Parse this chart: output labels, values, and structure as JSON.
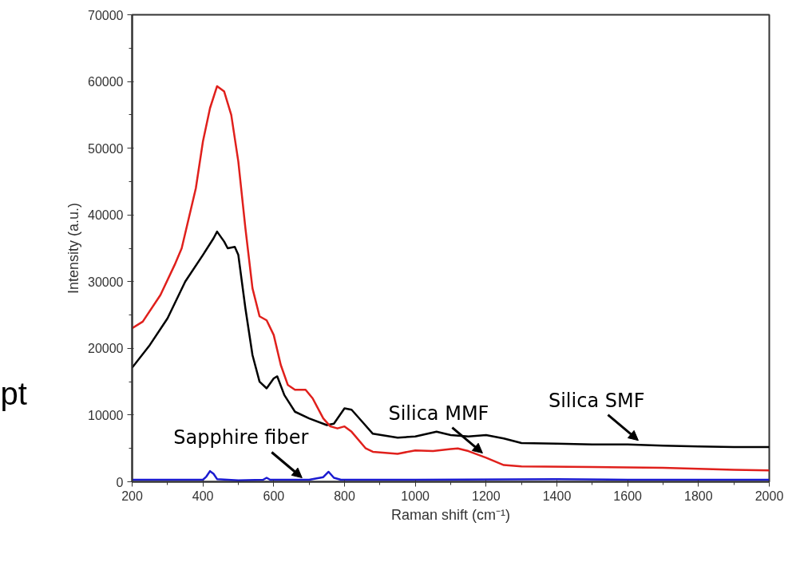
{
  "chart_data": {
    "type": "line",
    "xlabel": "Raman shift (cm⁻¹)",
    "ylabel": "Intensity (a.u.)",
    "xlim": [
      200,
      2000
    ],
    "xticks": [
      200,
      400,
      600,
      800,
      1000,
      1200,
      1400,
      1600,
      1800,
      2000
    ],
    "ylim": [
      0,
      70000
    ],
    "yticks": [
      0,
      10000,
      20000,
      30000,
      40000,
      50000,
      60000,
      70000
    ],
    "grid": false,
    "marker": "none",
    "line_style": "solid",
    "series": [
      {
        "color": "#000000",
        "x": [
          200,
          250,
          300,
          350,
          400,
          430,
          440,
          460,
          470,
          490,
          500,
          520,
          540,
          560,
          580,
          600,
          610,
          630,
          660,
          700,
          750,
          770,
          800,
          820,
          850,
          880,
          950,
          1000,
          1060,
          1100,
          1150,
          1200,
          1250,
          1300,
          1400,
          1500,
          1600,
          1700,
          1800,
          1900,
          2000
        ],
        "values": [
          17100,
          20500,
          24500,
          30000,
          34000,
          36500,
          37500,
          36000,
          35000,
          35200,
          34000,
          26000,
          19000,
          15000,
          14000,
          15500,
          15800,
          13000,
          10500,
          9500,
          8500,
          8700,
          11000,
          10800,
          9000,
          7200,
          6600,
          6800,
          7500,
          7000,
          6800,
          7000,
          6500,
          5800,
          5700,
          5600,
          5600,
          5400,
          5300,
          5200,
          5200
        ]
      },
      {
        "color": "#e0201c",
        "x": [
          200,
          230,
          280,
          320,
          340,
          380,
          400,
          420,
          440,
          460,
          480,
          500,
          520,
          540,
          560,
          580,
          600,
          620,
          640,
          660,
          690,
          710,
          740,
          760,
          780,
          800,
          820,
          860,
          880,
          950,
          1000,
          1050,
          1100,
          1120,
          1150,
          1200,
          1250,
          1300,
          1500,
          1700,
          1900,
          2000
        ],
        "values": [
          23000,
          24000,
          28000,
          32500,
          35000,
          44000,
          51000,
          56000,
          59300,
          58500,
          55000,
          48000,
          38000,
          29000,
          24800,
          24200,
          22000,
          17500,
          14500,
          13800,
          13800,
          12500,
          9500,
          8300,
          8000,
          8300,
          7500,
          5000,
          4500,
          4200,
          4700,
          4600,
          4900,
          5000,
          4600,
          3600,
          2500,
          2300,
          2200,
          2100,
          1800,
          1700
        ]
      },
      {
        "color": "#1a1ad0",
        "x": [
          200,
          400,
          410,
          420,
          430,
          440,
          500,
          570,
          580,
          590,
          700,
          740,
          755,
          770,
          790,
          1000,
          1400,
          1600,
          2000
        ],
        "values": [
          300,
          300,
          800,
          1600,
          1200,
          400,
          200,
          300,
          600,
          300,
          300,
          700,
          1500,
          600,
          300,
          300,
          400,
          300,
          300
        ]
      }
    ],
    "annotations": [
      {
        "text": "Silica SMF",
        "x": 1630,
        "y": 6200
      },
      {
        "text": "Silica MMF",
        "x": 1190,
        "y": 4300
      },
      {
        "text": "Sapphire fiber",
        "x": 680,
        "y": 600
      },
      "pt"
    ]
  }
}
